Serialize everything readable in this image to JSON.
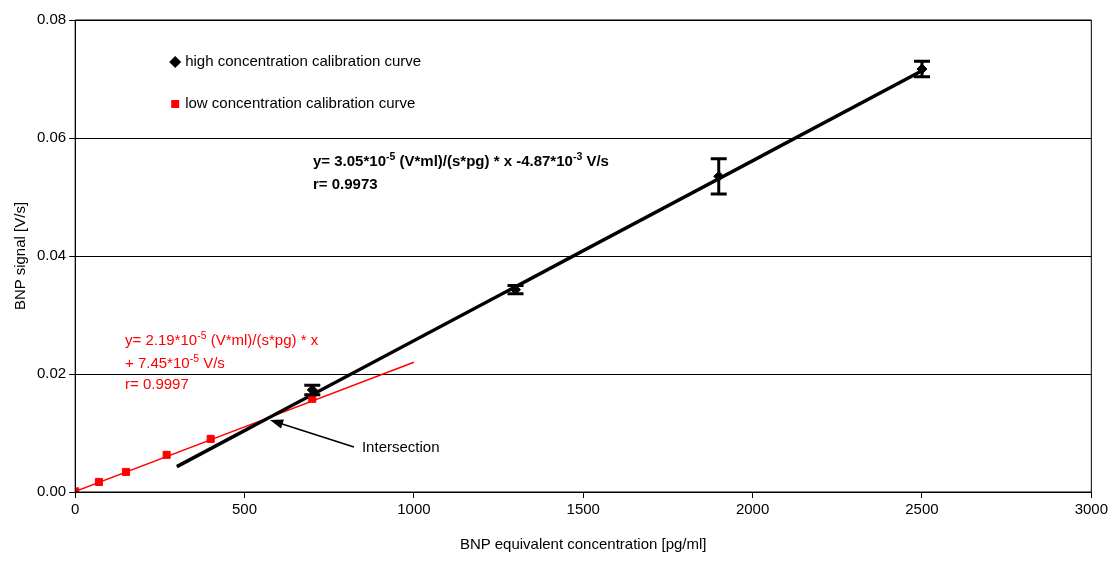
{
  "chart_data": {
    "type": "scatter",
    "xlabel": "BNP equivalent concentration [pg/ml]",
    "ylabel": "BNP signal [V/s]",
    "xlim": [
      0,
      3000
    ],
    "xticks": [
      0,
      500,
      1000,
      1500,
      2000,
      2500,
      3000
    ],
    "ylim": [
      0,
      0.08
    ],
    "yticks": [
      {
        "value": 0,
        "label": "0.00"
      },
      {
        "value": 0.02,
        "label": "0.02"
      },
      {
        "value": 0.04,
        "label": "0.04"
      },
      {
        "value": 0.06,
        "label": "0.06"
      },
      {
        "value": 0.08,
        "label": "0.08"
      }
    ],
    "grid": "y",
    "legend": "top left",
    "series": [
      {
        "name": "high concentration calibration curve",
        "marker": "diamond",
        "color": "#000000",
        "x": [
          700,
          1300,
          1900,
          2500
        ],
        "values": [
          0.0173,
          0.0343,
          0.0535,
          0.0717
        ],
        "errors": [
          0.0008,
          0.0007,
          0.003,
          0.0013
        ]
      },
      {
        "name": "low concentration calibration curve",
        "marker": "square",
        "color": "#ff0000",
        "x": [
          0,
          70,
          150,
          270,
          400,
          700
        ],
        "values": [
          0.0001,
          0.0017,
          0.0034,
          0.0063,
          0.009,
          0.0158
        ]
      },
      {
        "type": "line",
        "color": "#000000",
        "x": [
          300,
          2500
        ],
        "values": [
          0.0043,
          0.0714
        ]
      },
      {
        "type": "line",
        "color": "#ff0000",
        "x": [
          0,
          1000
        ],
        "values": [
          0.0001,
          0.022
        ]
      }
    ],
    "annotations": [
      "y= 3.05*10$^{-5}$ (V*ml)/(s*pg) * x -4.87*10$^{-3}$ V/s",
      "r= 0.9973",
      "y= 2.19*10$^{-5}$ (V*ml)/(s*pg) * x",
      "+ 7.45*10$^{-5}$ V/s",
      "r= 0.9997",
      {
        "text": "Intersection",
        "x": 575,
        "y": 0.0122
      }
    ]
  }
}
